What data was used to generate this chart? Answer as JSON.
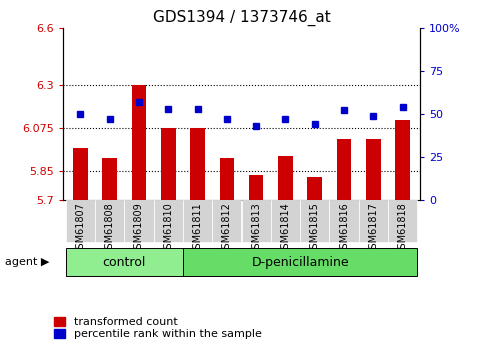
{
  "title": "GDS1394 / 1373746_at",
  "samples": [
    "GSM61807",
    "GSM61808",
    "GSM61809",
    "GSM61810",
    "GSM61811",
    "GSM61812",
    "GSM61813",
    "GSM61814",
    "GSM61815",
    "GSM61816",
    "GSM61817",
    "GSM61818"
  ],
  "red_values": [
    5.97,
    5.92,
    6.3,
    6.075,
    6.075,
    5.92,
    5.83,
    5.93,
    5.82,
    6.02,
    6.02,
    6.12
  ],
  "blue_values": [
    50,
    47,
    57,
    53,
    53,
    47,
    43,
    47,
    44,
    52,
    49,
    54
  ],
  "ylim_left": [
    5.7,
    6.6
  ],
  "ylim_right": [
    0,
    100
  ],
  "yticks_left": [
    5.7,
    5.85,
    6.075,
    6.3,
    6.6
  ],
  "yticks_right": [
    0,
    25,
    50,
    75,
    100
  ],
  "ytick_labels_left": [
    "5.7",
    "5.85",
    "6.075",
    "6.3",
    "6.6"
  ],
  "ytick_labels_right": [
    "0",
    "25",
    "50",
    "75",
    "100%"
  ],
  "hlines": [
    5.85,
    6.075,
    6.3
  ],
  "groups": [
    {
      "label": "control",
      "start": 0,
      "end": 4,
      "color": "#90EE90"
    },
    {
      "label": "D-penicillamine",
      "start": 4,
      "end": 12,
      "color": "#66DD66"
    }
  ],
  "agent_label": "agent",
  "red_color": "#CC0000",
  "blue_color": "#0000CC",
  "bar_width": 0.5,
  "background_color": "#ffffff",
  "tick_label_color_left": "#CC0000",
  "tick_label_color_right": "#0000CC",
  "legend_red_label": "transformed count",
  "legend_blue_label": "percentile rank within the sample",
  "title_fontsize": 11,
  "tick_fontsize": 8,
  "group_label_fontsize": 9,
  "legend_fontsize": 8,
  "xtick_fontsize": 7
}
